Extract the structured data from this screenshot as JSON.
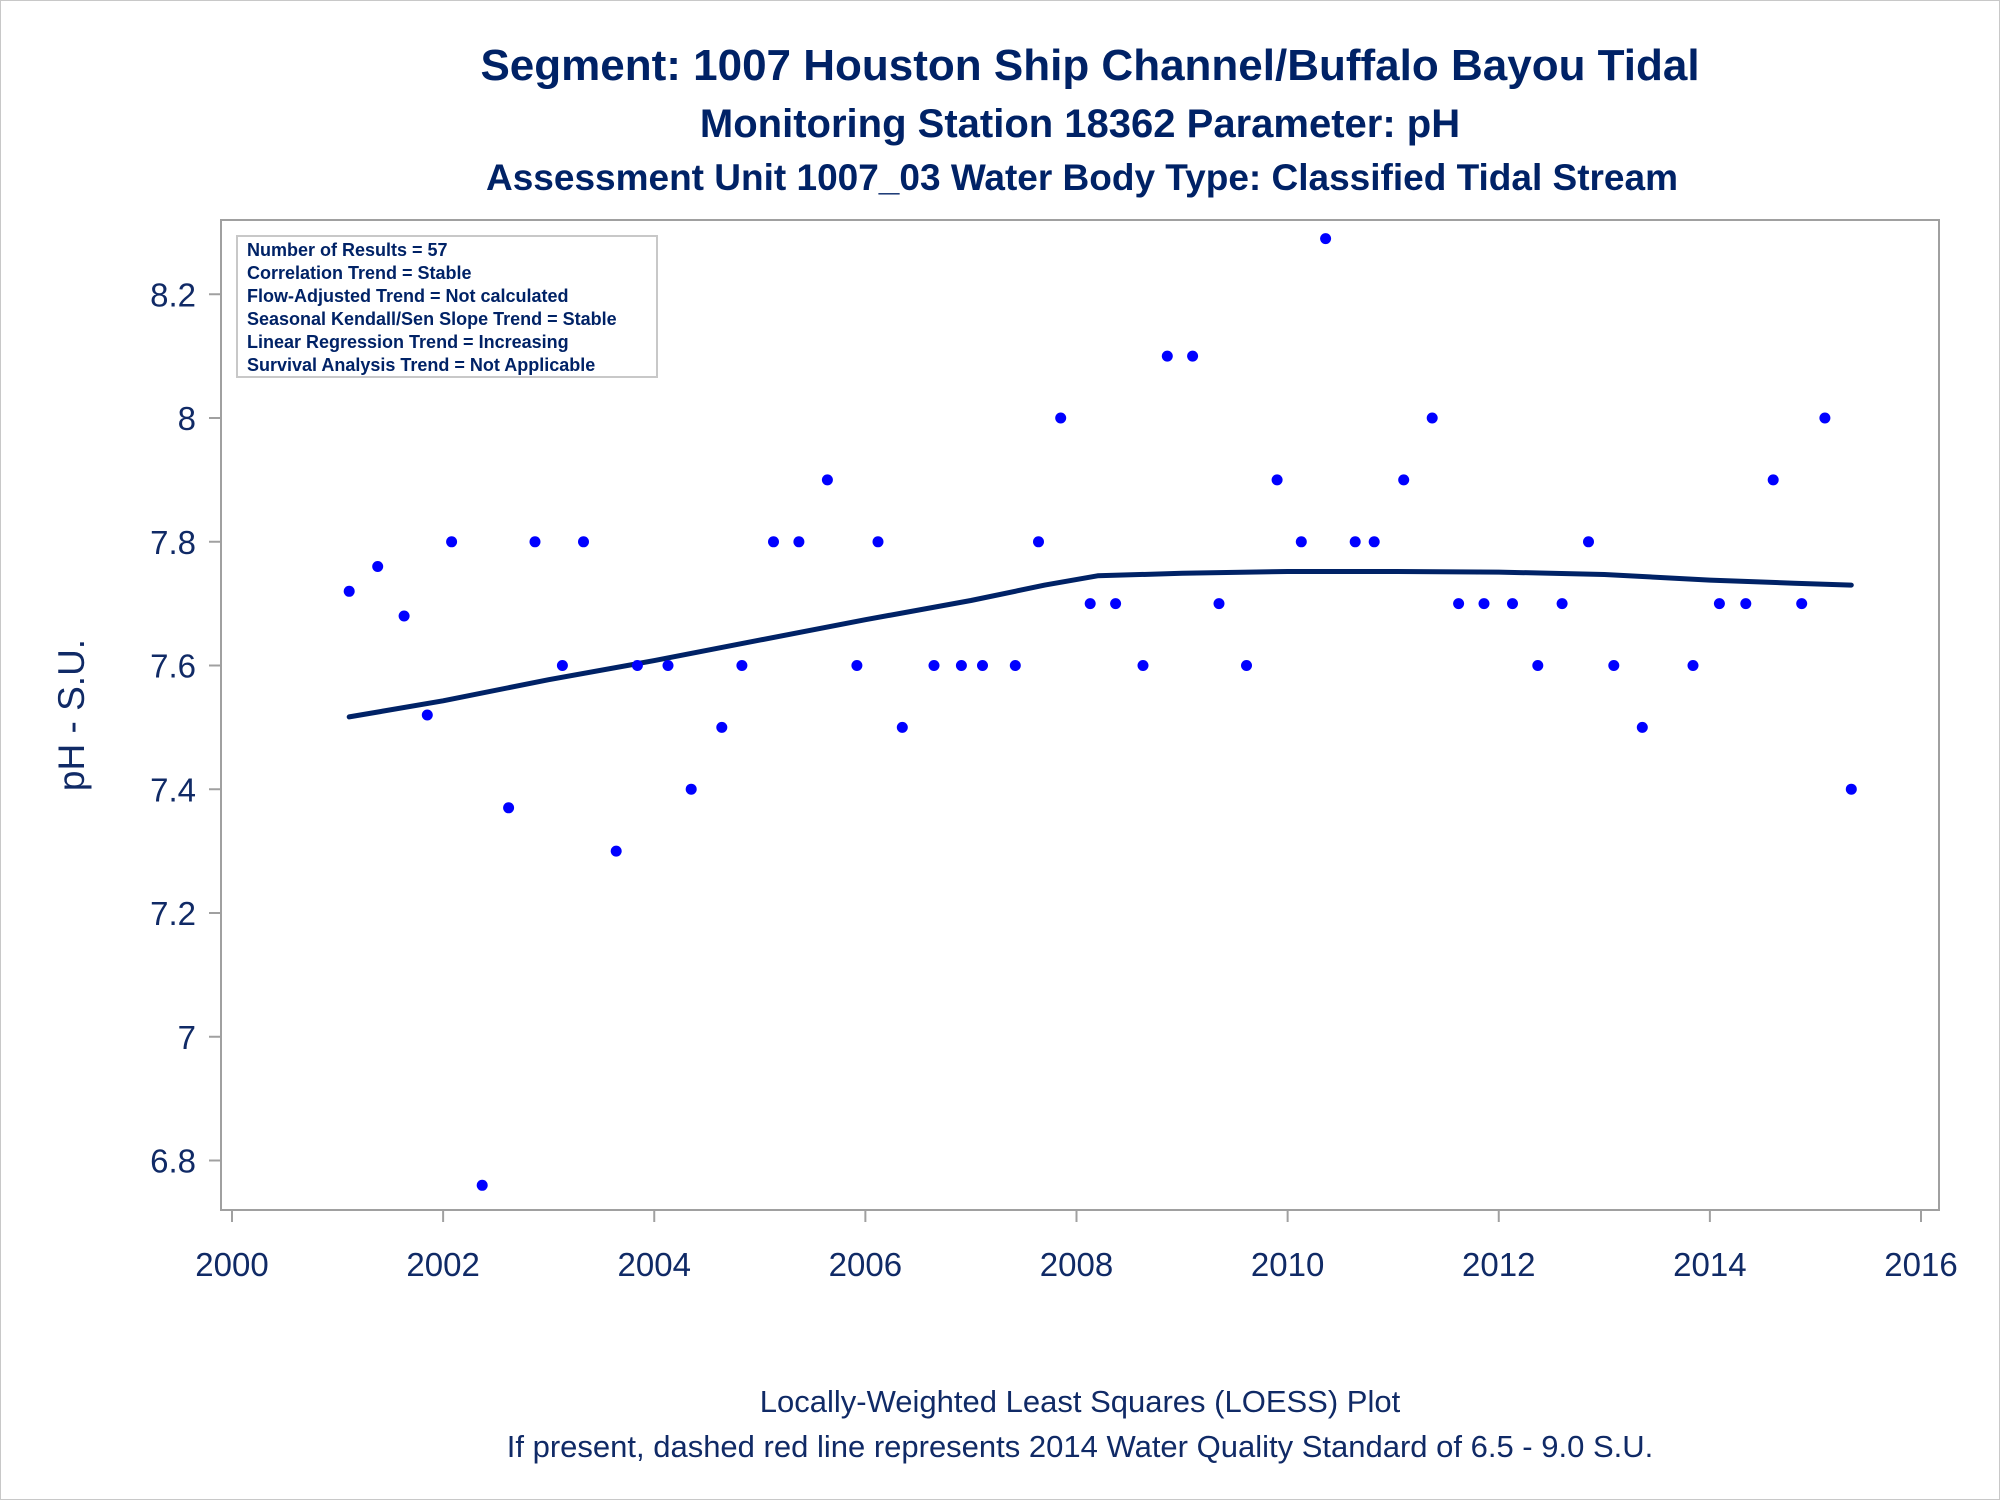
{
  "chart_data": {
    "type": "scatter",
    "title": "Segment: 1007  Houston Ship Channel/Buffalo Bayou Tidal",
    "subtitle": "Monitoring Station 18362 Parameter: pH",
    "subtitle2": "Assessment Unit 1007_03   Water Body Type: Classified Tidal Stream",
    "xlabel": "",
    "ylabel": "pH - S.U.",
    "xlim": [
      2000,
      2016
    ],
    "ylim": [
      6.72,
      8.32
    ],
    "x_ticks": [
      "2000",
      "2002",
      "2004",
      "2006",
      "2008",
      "2010",
      "2012",
      "2014",
      "2016"
    ],
    "y_ticks": [
      "6.8",
      "7",
      "7.2",
      "7.4",
      "7.6",
      "7.8",
      "8",
      "8.2"
    ],
    "grid": false,
    "legend_position": "top-left",
    "colors": {
      "points": "#0000ff",
      "trend": "#002266",
      "text": "#002266",
      "frame": "#a0a0a0"
    },
    "legend_lines": [
      "Number of Results = 57",
      "Correlation Trend = Stable",
      "Flow-Adjusted Trend = Not calculated",
      "Seasonal Kendall/Sen Slope Trend = Stable",
      "Linear Regression Trend = Increasing",
      "Survival Analysis Trend = Not Applicable"
    ],
    "footnotes": [
      "Locally-Weighted Least Squares (LOESS) Plot",
      "If present, dashed red line represents 2014 Water Quality Standard of 6.5 - 9.0 S.U."
    ],
    "series": [
      {
        "kind": "scatter",
        "points": [
          {
            "x": 2001.11,
            "y": 7.72
          },
          {
            "x": 2001.38,
            "y": 7.76
          },
          {
            "x": 2001.63,
            "y": 7.68
          },
          {
            "x": 2001.85,
            "y": 7.52
          },
          {
            "x": 2002.08,
            "y": 7.8
          },
          {
            "x": 2002.37,
            "y": 6.76
          },
          {
            "x": 2002.62,
            "y": 7.37
          },
          {
            "x": 2002.87,
            "y": 7.8
          },
          {
            "x": 2003.13,
            "y": 7.6
          },
          {
            "x": 2003.33,
            "y": 7.8
          },
          {
            "x": 2003.64,
            "y": 7.3
          },
          {
            "x": 2003.84,
            "y": 7.6
          },
          {
            "x": 2004.13,
            "y": 7.6
          },
          {
            "x": 2004.35,
            "y": 7.4
          },
          {
            "x": 2004.64,
            "y": 7.5
          },
          {
            "x": 2004.83,
            "y": 7.6
          },
          {
            "x": 2005.13,
            "y": 7.8
          },
          {
            "x": 2005.37,
            "y": 7.8
          },
          {
            "x": 2005.64,
            "y": 7.9
          },
          {
            "x": 2005.92,
            "y": 7.6
          },
          {
            "x": 2006.12,
            "y": 7.8
          },
          {
            "x": 2006.35,
            "y": 7.5
          },
          {
            "x": 2006.65,
            "y": 7.6
          },
          {
            "x": 2006.91,
            "y": 7.6
          },
          {
            "x": 2007.11,
            "y": 7.6
          },
          {
            "x": 2007.42,
            "y": 7.6
          },
          {
            "x": 2007.64,
            "y": 7.8
          },
          {
            "x": 2007.85,
            "y": 8.0
          },
          {
            "x": 2008.13,
            "y": 7.7
          },
          {
            "x": 2008.37,
            "y": 7.7
          },
          {
            "x": 2008.63,
            "y": 7.6
          },
          {
            "x": 2008.86,
            "y": 8.1
          },
          {
            "x": 2009.1,
            "y": 8.1
          },
          {
            "x": 2009.35,
            "y": 7.7
          },
          {
            "x": 2009.61,
            "y": 7.6
          },
          {
            "x": 2009.9,
            "y": 7.9
          },
          {
            "x": 2010.13,
            "y": 7.8
          },
          {
            "x": 2010.36,
            "y": 8.29
          },
          {
            "x": 2010.64,
            "y": 7.8
          },
          {
            "x": 2010.82,
            "y": 7.8
          },
          {
            "x": 2011.1,
            "y": 7.9
          },
          {
            "x": 2011.37,
            "y": 8.0
          },
          {
            "x": 2011.62,
            "y": 7.7
          },
          {
            "x": 2011.86,
            "y": 7.7
          },
          {
            "x": 2012.13,
            "y": 7.7
          },
          {
            "x": 2012.37,
            "y": 7.6
          },
          {
            "x": 2012.6,
            "y": 7.7
          },
          {
            "x": 2012.85,
            "y": 7.8
          },
          {
            "x": 2013.09,
            "y": 7.6
          },
          {
            "x": 2013.36,
            "y": 7.5
          },
          {
            "x": 2013.84,
            "y": 7.6
          },
          {
            "x": 2014.09,
            "y": 7.7
          },
          {
            "x": 2014.34,
            "y": 7.7
          },
          {
            "x": 2014.6,
            "y": 7.9
          },
          {
            "x": 2014.87,
            "y": 7.7
          },
          {
            "x": 2015.09,
            "y": 8.0
          },
          {
            "x": 2015.34,
            "y": 7.4
          }
        ]
      },
      {
        "kind": "line",
        "points": [
          {
            "x": 2001.11,
            "y": 7.517
          },
          {
            "x": 2002.0,
            "y": 7.543
          },
          {
            "x": 2003.0,
            "y": 7.577
          },
          {
            "x": 2004.0,
            "y": 7.608
          },
          {
            "x": 2005.0,
            "y": 7.641
          },
          {
            "x": 2006.0,
            "y": 7.674
          },
          {
            "x": 2007.0,
            "y": 7.705
          },
          {
            "x": 2007.7,
            "y": 7.73
          },
          {
            "x": 2008.2,
            "y": 7.745
          },
          {
            "x": 2009.0,
            "y": 7.749
          },
          {
            "x": 2010.0,
            "y": 7.752
          },
          {
            "x": 2011.0,
            "y": 7.752
          },
          {
            "x": 2012.0,
            "y": 7.751
          },
          {
            "x": 2013.0,
            "y": 7.747
          },
          {
            "x": 2014.0,
            "y": 7.738
          },
          {
            "x": 2014.8,
            "y": 7.733
          },
          {
            "x": 2015.34,
            "y": 7.73
          }
        ]
      }
    ]
  }
}
